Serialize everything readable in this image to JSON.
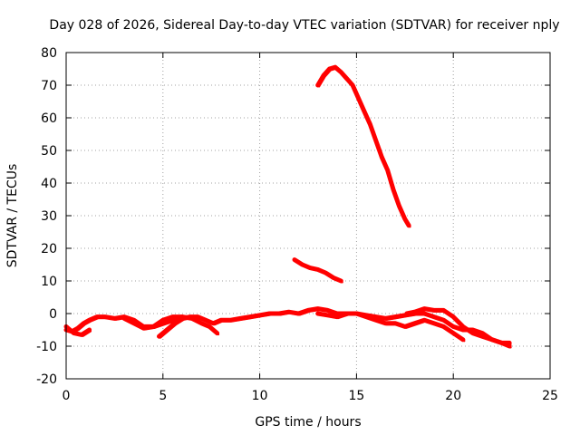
{
  "chart_data": {
    "type": "line",
    "title": "Day 028 of 2026, Sidereal Day-to-day VTEC variation (SDTVAR) for receiver nply",
    "xlabel": "GPS time / hours",
    "ylabel": "SDTVAR / TECUs",
    "xlim": [
      0,
      25
    ],
    "ylim": [
      -20,
      80
    ],
    "xticks": [
      0,
      5,
      10,
      15,
      20,
      25
    ],
    "yticks": [
      -20,
      -10,
      0,
      10,
      20,
      30,
      40,
      50,
      60,
      70,
      80
    ],
    "grid": true,
    "series_color": "#ff0000",
    "series": [
      {
        "name": "satellite-trace-1",
        "x": [
          0.0,
          0.3,
          0.6,
          0.9,
          1.2,
          1.6,
          2.0,
          2.5,
          3.0,
          3.5,
          4.0,
          4.5,
          5.0,
          5.5,
          6.0,
          6.5,
          7.0,
          7.4,
          7.8
        ],
        "y": [
          -5,
          -5.5,
          -4.5,
          -3,
          -2,
          -1,
          -1,
          -1.5,
          -1,
          -2,
          -4,
          -4,
          -2,
          -1,
          -1,
          -1.5,
          -3,
          -4,
          -6
        ]
      },
      {
        "name": "satellite-trace-2",
        "x": [
          0.0,
          0.4,
          0.8,
          1.2
        ],
        "y": [
          -4,
          -6,
          -6.5,
          -5
        ]
      },
      {
        "name": "satellite-trace-3",
        "x": [
          3.0,
          3.5,
          4.0,
          4.5,
          5.0,
          5.5,
          6.0
        ],
        "y": [
          -1.5,
          -3,
          -4.5,
          -4,
          -3,
          -2,
          -1
        ]
      },
      {
        "name": "satellite-trace-4",
        "x": [
          4.8,
          5.2,
          5.6,
          6.0,
          6.4,
          6.8,
          7.2,
          7.6,
          8.0,
          8.5,
          9.0,
          9.5,
          10.0,
          10.5,
          11.0,
          11.5,
          12.0,
          12.5,
          13.0,
          13.5,
          14.0,
          14.5,
          15.0,
          15.5,
          16.0,
          16.5,
          17.0,
          17.5,
          18.0,
          18.5,
          19.0,
          19.5,
          20.0,
          20.5,
          21.0,
          21.5,
          22.0,
          22.5,
          22.9
        ],
        "y": [
          -7,
          -5,
          -3,
          -1.5,
          -1,
          -1,
          -2,
          -3,
          -2,
          -2,
          -1.5,
          -1,
          -0.5,
          0,
          0,
          0.5,
          0,
          1,
          1.5,
          1,
          0,
          0,
          0,
          -0.5,
          -1,
          -1.5,
          -1,
          -0.5,
          0,
          0,
          -1,
          -2,
          -4,
          -5,
          -5,
          -6,
          -8,
          -9,
          -9
        ]
      },
      {
        "name": "satellite-trace-5",
        "x": [
          13.0,
          13.5,
          14.0,
          14.5,
          15.0,
          15.5,
          16.0,
          16.5,
          17.0,
          17.5,
          18.0,
          18.5,
          19.0,
          19.5,
          20.0,
          20.5
        ],
        "y": [
          0,
          -0.5,
          -1,
          0,
          0,
          -1,
          -2,
          -3,
          -3,
          -4,
          -3,
          -2,
          -3,
          -4,
          -6,
          -8
        ]
      },
      {
        "name": "satellite-trace-6",
        "x": [
          17.6,
          18.0,
          18.5,
          19.0,
          19.5,
          20.0,
          20.5,
          21.0,
          21.5,
          22.0,
          22.5,
          22.9
        ],
        "y": [
          0,
          0.5,
          1.5,
          1,
          1,
          -1,
          -4,
          -6,
          -7,
          -8,
          -9,
          -10
        ]
      },
      {
        "name": "satellite-trace-7",
        "x": [
          13.0,
          13.3,
          13.6,
          13.9,
          14.2,
          14.5,
          14.8,
          15.1,
          15.4,
          15.7,
          16.0,
          16.3,
          16.6,
          16.9,
          17.2,
          17.5,
          17.7
        ],
        "y": [
          70,
          73,
          75,
          75.5,
          74,
          72,
          70,
          66,
          62,
          58,
          53,
          48,
          44,
          38,
          33,
          29,
          27
        ]
      },
      {
        "name": "satellite-trace-8",
        "x": [
          11.8,
          12.2,
          12.6,
          13.0,
          13.4,
          13.8,
          14.2
        ],
        "y": [
          16.5,
          15,
          14,
          13.5,
          12.5,
          11,
          10
        ]
      }
    ]
  }
}
